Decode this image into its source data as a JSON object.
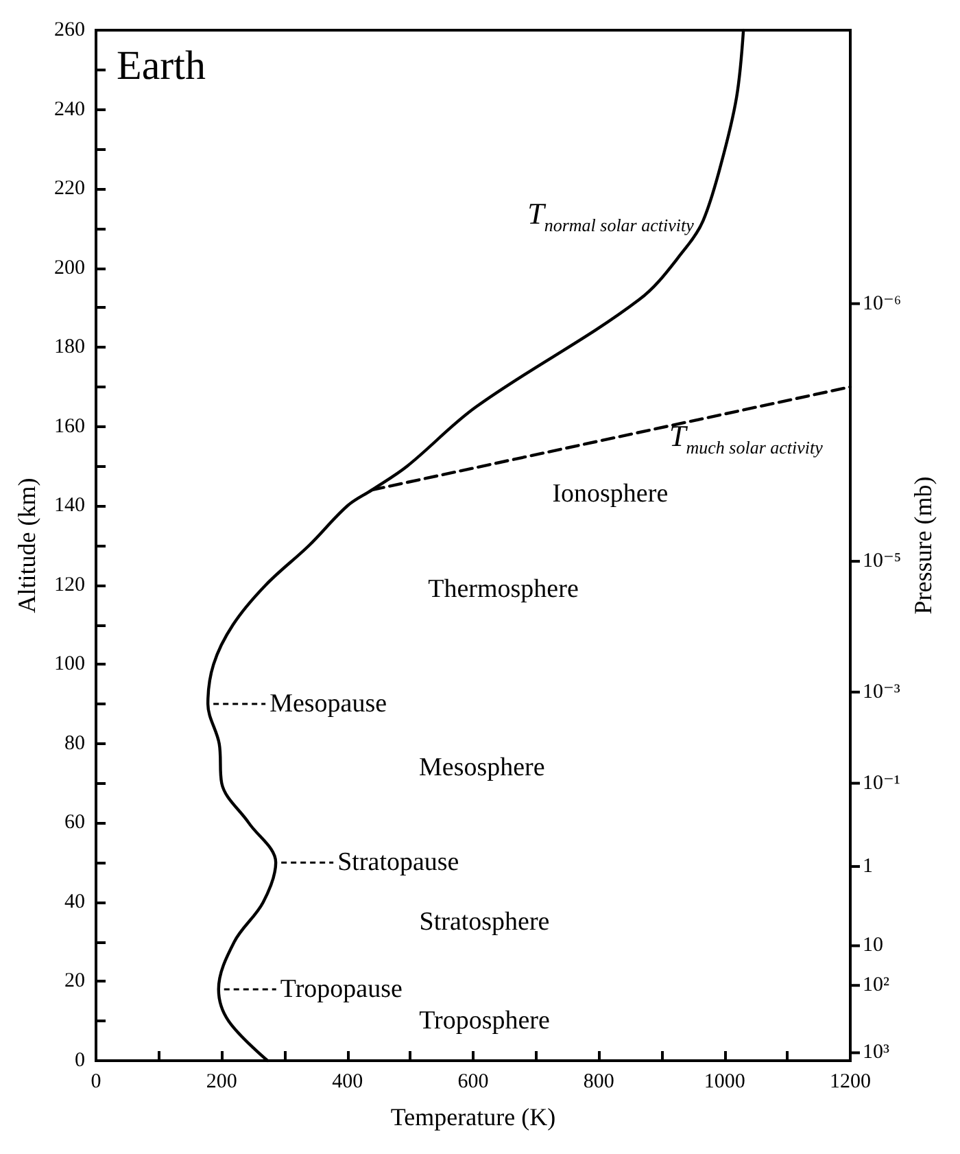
{
  "chart_data": {
    "type": "line",
    "title": "Earth",
    "xlabel": "Temperature (K)",
    "ylabel": "Altitude (km)",
    "y2label": "Pressure (mb)",
    "xlim": [
      0,
      1200
    ],
    "xticks": [
      0,
      {
        "value": 100,
        "label": null
      },
      200,
      {
        "value": 300,
        "label": null
      },
      400,
      {
        "value": 500,
        "label": null
      },
      600,
      {
        "value": 700,
        "label": null
      },
      800,
      {
        "value": 900,
        "label": null
      },
      1000,
      {
        "value": 1100,
        "label": null
      },
      1200
    ],
    "ylim": [
      0,
      260
    ],
    "yticks": [
      0,
      {
        "value": 10,
        "label": null
      },
      20,
      {
        "value": 30,
        "label": null
      },
      40,
      {
        "value": 50,
        "label": null
      },
      60,
      {
        "value": 70,
        "label": null
      },
      80,
      {
        "value": 90,
        "label": null
      },
      100,
      {
        "value": 110,
        "label": null
      },
      120,
      {
        "value": 130,
        "label": null
      },
      140,
      {
        "value": 150,
        "label": null
      },
      160,
      {
        "value": 170,
        "label": null
      },
      180,
      {
        "value": 190,
        "label": null
      },
      200,
      {
        "value": 210,
        "label": null
      },
      220,
      {
        "value": 230,
        "label": null
      },
      240,
      {
        "value": 250,
        "label": null
      },
      260
    ],
    "marker": "none",
    "series": [
      {
        "color": "#000000",
        "line_style": "solid",
        "x": [
          273,
          211,
          195,
          220,
          266,
          286,
          243,
          200,
          196,
          178,
          187,
          218,
          270,
          339,
          400,
          439,
          495,
          605,
          864,
          938,
          966,
          994,
          1019,
          1030
        ],
        "values": [
          0,
          10,
          18,
          30,
          40,
          50,
          60,
          70,
          80,
          90,
          100,
          110,
          120,
          130,
          140,
          144,
          150,
          165,
          192,
          205,
          212,
          226,
          243,
          260
        ]
      },
      {
        "color": "#000000",
        "line_style": "dashed",
        "x": [
          439,
          1200
        ],
        "values": [
          144,
          170
        ]
      }
    ],
    "annotations": [
      {
        "text": "T$_{normal solar activity}$",
        "x": 994,
        "y": 226
      },
      {
        "text": "T$_{much solar activity}$",
        "x": 1200,
        "y": 170
      },
      "Ionosphere",
      "Thermosphere",
      {
        "text": "Mesopause",
        "x": 178,
        "y": 90
      },
      "Mesosphere",
      {
        "text": "Stratopause",
        "x": 286,
        "y": 50
      },
      "Stratosphere",
      {
        "text": "Tropopause",
        "x": 195,
        "y": 18
      },
      "Troposphere",
      "10³",
      "10²",
      "10",
      "1",
      "10⁻¹",
      "10⁻³",
      "10⁻⁵",
      "10⁻⁶"
    ]
  }
}
